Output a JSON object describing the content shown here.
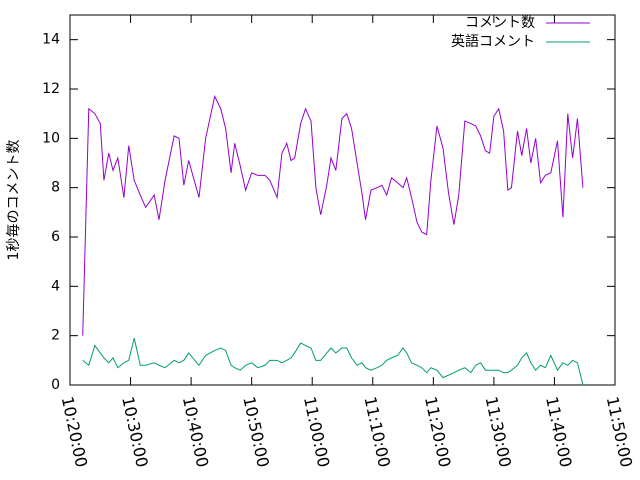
{
  "chart_data": {
    "type": "line",
    "ylabel": "1秒毎のコメント数",
    "x": [
      "10:22:06",
      "10:23:06",
      "10:24:06",
      "10:25:00",
      "10:25:36",
      "10:26:24",
      "10:27:06",
      "10:27:54",
      "10:28:54",
      "10:29:42",
      "10:30:36",
      "10:31:36",
      "10:32:30",
      "10:33:54",
      "10:34:42",
      "10:35:42",
      "10:37:12",
      "10:38:00",
      "10:38:48",
      "10:39:36",
      "10:41:18",
      "10:42:24",
      "10:43:54",
      "10:44:54",
      "10:45:42",
      "10:46:36",
      "10:47:12",
      "10:48:06",
      "10:49:00",
      "10:50:00",
      "10:51:00",
      "10:52:12",
      "10:53:00",
      "10:54:12",
      "10:55:00",
      "10:55:48",
      "10:56:30",
      "10:57:06",
      "10:58:06",
      "10:58:54",
      "10:59:48",
      "11:00:36",
      "11:01:24",
      "11:02:24",
      "11:03:06",
      "11:03:54",
      "11:04:54",
      "11:05:42",
      "11:06:30",
      "11:07:24",
      "11:08:12",
      "11:08:48",
      "11:09:42",
      "11:10:42",
      "11:11:30",
      "11:12:18",
      "11:13:06",
      "11:14:06",
      "11:15:00",
      "11:15:36",
      "11:16:24",
      "11:17:18",
      "11:18:06",
      "11:18:54",
      "11:19:36",
      "11:20:36",
      "11:21:36",
      "11:22:30",
      "11:23:24",
      "11:24:12",
      "11:25:12",
      "11:26:12",
      "11:27:00",
      "11:27:48",
      "11:28:36",
      "11:29:18",
      "11:30:00",
      "11:30:48",
      "11:31:36",
      "11:32:18",
      "11:32:54",
      "11:33:54",
      "11:34:36",
      "11:35:24",
      "11:36:06",
      "11:36:54",
      "11:37:42",
      "11:38:30",
      "11:39:24",
      "11:40:30",
      "11:41:24",
      "11:42:12",
      "11:43:00",
      "11:43:48",
      "11:44:42"
    ],
    "series": [
      {
        "name": "コメント数",
        "color": "#9400d3",
        "values": [
          2.0,
          11.2,
          11.0,
          10.6,
          8.3,
          9.4,
          8.7,
          9.2,
          7.6,
          9.7,
          8.3,
          7.7,
          7.2,
          7.7,
          6.7,
          8.3,
          10.1,
          10.0,
          8.1,
          9.1,
          7.6,
          10.0,
          11.7,
          11.2,
          10.4,
          8.6,
          9.8,
          8.9,
          7.9,
          8.6,
          8.5,
          8.5,
          8.3,
          7.6,
          9.4,
          9.8,
          9.1,
          9.2,
          10.6,
          11.2,
          10.7,
          8.0,
          6.9,
          8.1,
          9.2,
          8.7,
          10.8,
          11.0,
          10.4,
          9.0,
          7.8,
          6.7,
          7.9,
          8.0,
          8.1,
          7.7,
          8.4,
          8.2,
          8.0,
          8.4,
          7.6,
          6.6,
          6.2,
          6.1,
          8.3,
          10.5,
          9.6,
          7.8,
          6.5,
          7.7,
          10.7,
          10.6,
          10.5,
          10.1,
          9.5,
          9.4,
          10.9,
          11.2,
          10.3,
          7.9,
          8.0,
          10.3,
          9.3,
          10.4,
          9.0,
          10.0,
          8.2,
          8.5,
          8.6,
          9.9,
          6.8,
          11.0,
          9.2,
          10.8,
          8.0
        ]
      },
      {
        "name": "英語コメント",
        "color": "#009e73",
        "values": [
          1.0,
          0.8,
          1.6,
          1.3,
          1.1,
          0.9,
          1.1,
          0.7,
          0.9,
          1.0,
          1.9,
          0.8,
          0.8,
          0.9,
          0.8,
          0.7,
          1.0,
          0.9,
          1.0,
          1.3,
          0.8,
          1.2,
          1.4,
          1.5,
          1.4,
          0.8,
          0.7,
          0.6,
          0.8,
          0.9,
          0.7,
          0.8,
          1.0,
          1.0,
          0.9,
          1.0,
          1.1,
          1.3,
          1.7,
          1.6,
          1.5,
          1.0,
          1.0,
          1.3,
          1.5,
          1.3,
          1.5,
          1.5,
          1.1,
          0.8,
          0.9,
          0.7,
          0.6,
          0.7,
          0.8,
          1.0,
          1.1,
          1.2,
          1.5,
          1.3,
          0.9,
          0.8,
          0.7,
          0.5,
          0.7,
          0.6,
          0.3,
          0.4,
          0.5,
          0.6,
          0.7,
          0.5,
          0.8,
          0.9,
          0.6,
          0.6,
          0.6,
          0.6,
          0.5,
          0.5,
          0.6,
          0.8,
          1.1,
          1.3,
          0.9,
          0.6,
          0.8,
          0.7,
          1.2,
          0.6,
          0.9,
          0.8,
          1.0,
          0.9,
          0.0
        ]
      }
    ],
    "xlim": [
      "10:20:00",
      "11:50:00"
    ],
    "xticks": [
      "10:20:00",
      "10:30:00",
      "10:40:00",
      "10:50:00",
      "11:00:00",
      "11:10:00",
      "11:20:00",
      "11:30:00",
      "11:40:00",
      "11:50:00"
    ],
    "ylim": [
      0,
      15
    ],
    "yticks": [
      0,
      2,
      4,
      6,
      8,
      10,
      12,
      14
    ],
    "legend": "top-right"
  }
}
